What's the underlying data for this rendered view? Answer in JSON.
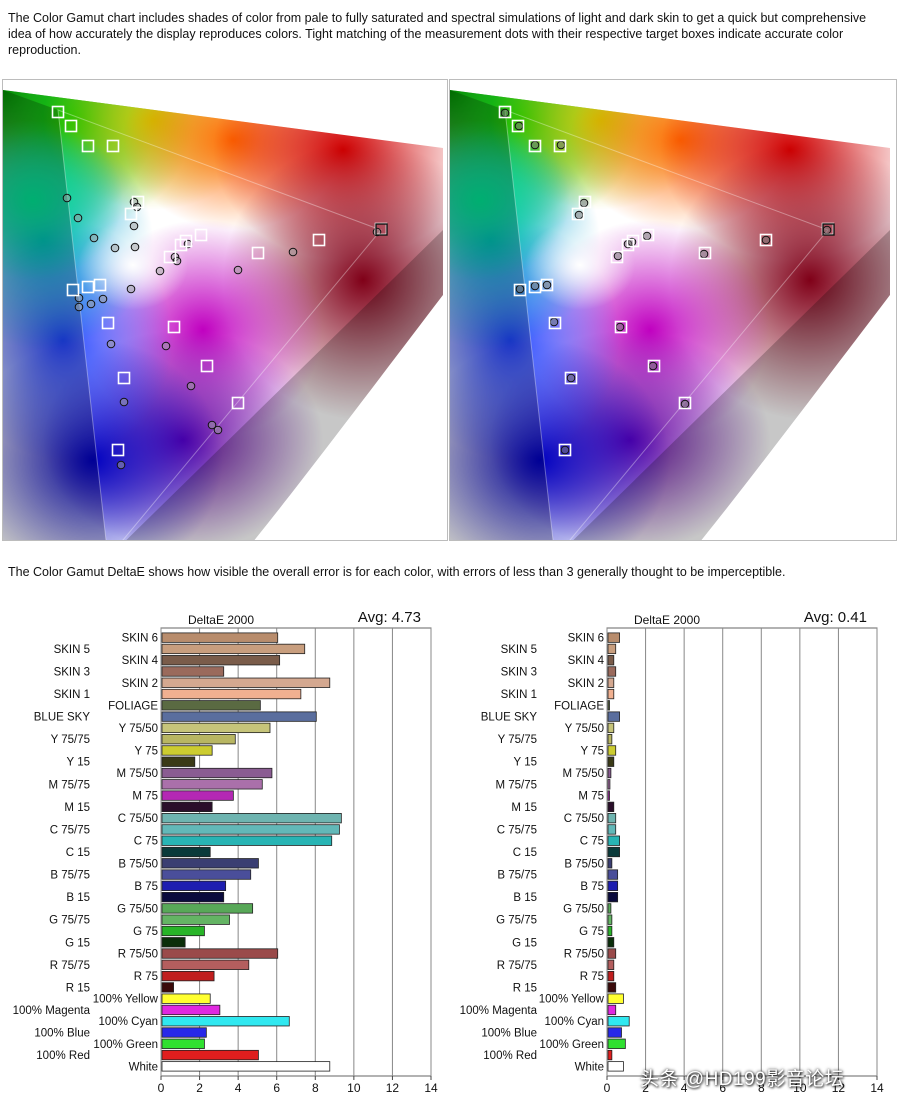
{
  "intro_text": "The Color Gamut chart includes shades of color from pale to fully saturated and spectral simulations of light and dark skin to get a quick but comprehensive idea of how accurately the display reproduces colors.  Tight matching of the measurement dots with their respective target boxes indicate accurate color reproduction.",
  "deltae_text": "The Color Gamut DeltaE shows how visible the overall error is for each color, with errors of less than 3 generally thought to be imperceptible.",
  "watermark": "头条 @HD199影音论坛",
  "gamut_charts": [
    {
      "name": "left",
      "description_free": true
    },
    {
      "name": "right",
      "description_free": true
    }
  ],
  "chart_data": [
    {
      "type": "bar",
      "orientation": "horizontal",
      "title": "DeltaE 2000",
      "avg_label": "Avg: 4.73",
      "xlim": [
        0,
        14
      ],
      "xticks": [
        0,
        2,
        4,
        6,
        8,
        10,
        12,
        14
      ],
      "grid": true,
      "categories": [
        "SKIN 6",
        "SKIN 5",
        "SKIN 4",
        "SKIN 3",
        "SKIN 2",
        "SKIN 1",
        "FOLIAGE",
        "BLUE SKY",
        "Y 75/50",
        "Y 75/75",
        "Y 75",
        "Y 15",
        "M 75/50",
        "M 75/75",
        "M 75",
        "M 15",
        "C 75/50",
        "C 75/75",
        "C 75",
        "C 15",
        "B 75/50",
        "B 75/75",
        "B 75",
        "B 15",
        "G 75/50",
        "G 75/75",
        "G 75",
        "G 15",
        "R 75/50",
        "R 75/75",
        "R 75",
        "R 15",
        "100% Yellow",
        "100% Magenta",
        "100% Cyan",
        "100% Blue",
        "100% Green",
        "100% Red",
        "White"
      ],
      "values": [
        6.0,
        7.4,
        6.1,
        3.2,
        8.7,
        7.2,
        5.1,
        8.0,
        5.6,
        3.8,
        2.6,
        1.7,
        5.7,
        5.2,
        3.7,
        2.6,
        9.3,
        9.2,
        8.8,
        2.5,
        5.0,
        4.6,
        3.3,
        3.2,
        4.7,
        3.5,
        2.2,
        1.2,
        6.0,
        4.5,
        2.7,
        0.6,
        2.5,
        3.0,
        6.6,
        2.3,
        2.2,
        5.0,
        8.7
      ],
      "colors": [
        "#b88c6c",
        "#c89e7e",
        "#7a5c4a",
        "#9a6a5c",
        "#d4a890",
        "#f0b090",
        "#5a6a42",
        "#5a6e9e",
        "#c6c47a",
        "#b8b662",
        "#cccc30",
        "#3a3a16",
        "#8a5c92",
        "#aa70aa",
        "#b428b4",
        "#2a0e2a",
        "#6eb4b0",
        "#62b8b8",
        "#28b4b4",
        "#0a3a3a",
        "#3a3e72",
        "#4a4e9a",
        "#1e1eb0",
        "#0a0a3c",
        "#58a858",
        "#64b464",
        "#28b428",
        "#0a2e0a",
        "#9a4a4a",
        "#b45e5e",
        "#c01e1e",
        "#3a0a0a",
        "#ffff30",
        "#e028e0",
        "#30e8f0",
        "#2828e8",
        "#30e030",
        "#e01e1e",
        "#ffffff"
      ]
    },
    {
      "type": "bar",
      "orientation": "horizontal",
      "title": "DeltaE 2000",
      "avg_label": "Avg: 0.41",
      "xlim": [
        0,
        14
      ],
      "xticks": [
        0,
        2,
        4,
        6,
        8,
        10,
        12,
        14
      ],
      "grid": true,
      "categories": [
        "SKIN 6",
        "SKIN 5",
        "SKIN 4",
        "SKIN 3",
        "SKIN 2",
        "SKIN 1",
        "FOLIAGE",
        "BLUE SKY",
        "Y 75/50",
        "Y 75/75",
        "Y 75",
        "Y 15",
        "M 75/50",
        "M 75/75",
        "M 75",
        "M 15",
        "C 75/50",
        "C 75/75",
        "C 75",
        "C 15",
        "B 75/50",
        "B 75/75",
        "B 75",
        "B 15",
        "G 75/50",
        "G 75/75",
        "G 75",
        "G 15",
        "R 75/50",
        "R 75/75",
        "R 75",
        "R 15",
        "100% Yellow",
        "100% Magenta",
        "100% Cyan",
        "100% Blue",
        "100% Green",
        "100% Red",
        "White"
      ],
      "values": [
        0.6,
        0.4,
        0.3,
        0.4,
        0.3,
        0.3,
        0.05,
        0.6,
        0.3,
        0.2,
        0.4,
        0.3,
        0.15,
        0.1,
        0.05,
        0.3,
        0.4,
        0.4,
        0.6,
        0.6,
        0.2,
        0.5,
        0.5,
        0.5,
        0.15,
        0.2,
        0.2,
        0.3,
        0.4,
        0.3,
        0.3,
        0.4,
        0.8,
        0.4,
        1.1,
        0.7,
        0.9,
        0.2,
        0.8
      ],
      "colors": [
        "#b88c6c",
        "#c89e7e",
        "#7a5c4a",
        "#9a6a5c",
        "#d4a890",
        "#f0b090",
        "#5a6a42",
        "#5a6e9e",
        "#c6c47a",
        "#b8b662",
        "#cccc30",
        "#3a3a16",
        "#8a5c92",
        "#aa70aa",
        "#b428b4",
        "#2a0e2a",
        "#6eb4b0",
        "#62b8b8",
        "#28b4b4",
        "#0a3a3a",
        "#3a3e72",
        "#4a4e9a",
        "#1e1eb0",
        "#0a0a3c",
        "#58a858",
        "#64b464",
        "#28b428",
        "#0a2e0a",
        "#9a4a4a",
        "#b45e5e",
        "#c01e1e",
        "#3a0a0a",
        "#ffff30",
        "#e028e0",
        "#30e8f0",
        "#2828e8",
        "#30e030",
        "#e01e1e",
        "#ffffff"
      ]
    }
  ]
}
